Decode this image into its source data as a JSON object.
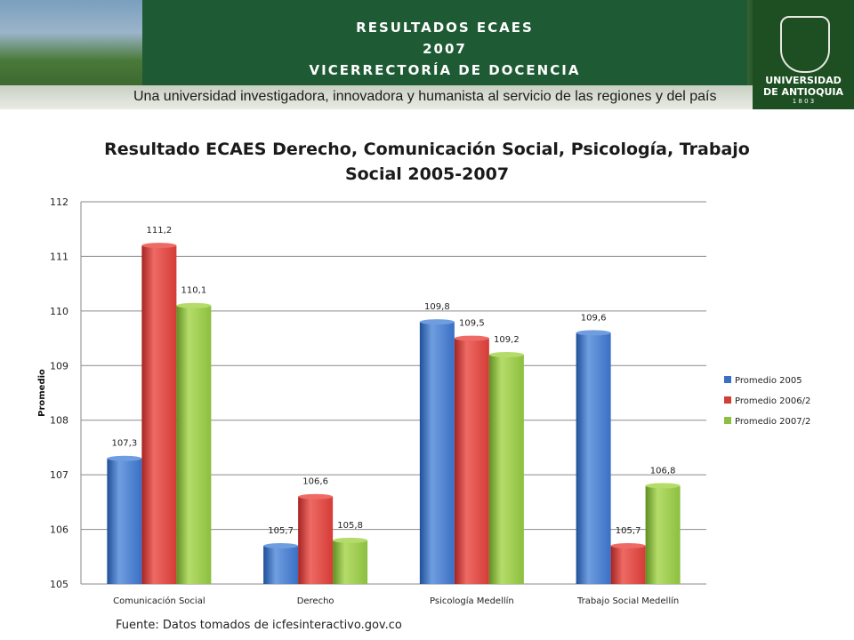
{
  "banner": {
    "line1": "RESULTADOS ECAES",
    "line2": "2007",
    "line3": "VICERRECTORÍA DE DOCENCIA",
    "tagline": "Una universidad investigadora, innovadora y humanista al servicio de las regiones y del país",
    "logo_line1": "UNIVERSIDAD",
    "logo_line2": "DE ANTIOQUIA",
    "logo_year": "1 8 0 3"
  },
  "colors": {
    "series": [
      "#3a6fc4",
      "#d43c37",
      "#8cbf3f"
    ],
    "series_dark": [
      "#1f4f99",
      "#a52422",
      "#5f8f22"
    ],
    "series_light": [
      "#6f9ee0",
      "#ee6a64",
      "#b5dc6a"
    ]
  },
  "source_text": "Fuente: Datos tomados de icfesinteractivo.gov.co",
  "chart_data": {
    "type": "bar",
    "title": "Resultado ECAES Derecho, Comunicación Social, Psicología, Trabajo Social 2005-2007",
    "xlabel": "",
    "ylabel": "Promedio",
    "ylim": [
      105,
      112
    ],
    "yticks": [
      "105",
      "106",
      "107",
      "108",
      "109",
      "110",
      "111",
      "112"
    ],
    "grid": true,
    "legend_position": "right",
    "categories": [
      "Comunicación Social",
      "Derecho",
      "Psicología Medellín",
      "Trabajo Social Medellín"
    ],
    "series": [
      {
        "name": "Promedio 2005",
        "values": [
          107.3,
          105.7,
          109.8,
          109.6
        ],
        "labels": [
          "107,3",
          "105,7",
          "109,8",
          "109,6"
        ]
      },
      {
        "name": "Promedio 2006/2",
        "values": [
          111.2,
          106.6,
          109.5,
          105.7
        ],
        "labels": [
          "111,2",
          "106,6",
          "109,5",
          "105,7"
        ]
      },
      {
        "name": "Promedio 2007/2",
        "values": [
          110.1,
          105.8,
          109.2,
          106.8
        ],
        "labels": [
          "110,1",
          "105,8",
          "109,2",
          "106,8"
        ]
      }
    ]
  }
}
